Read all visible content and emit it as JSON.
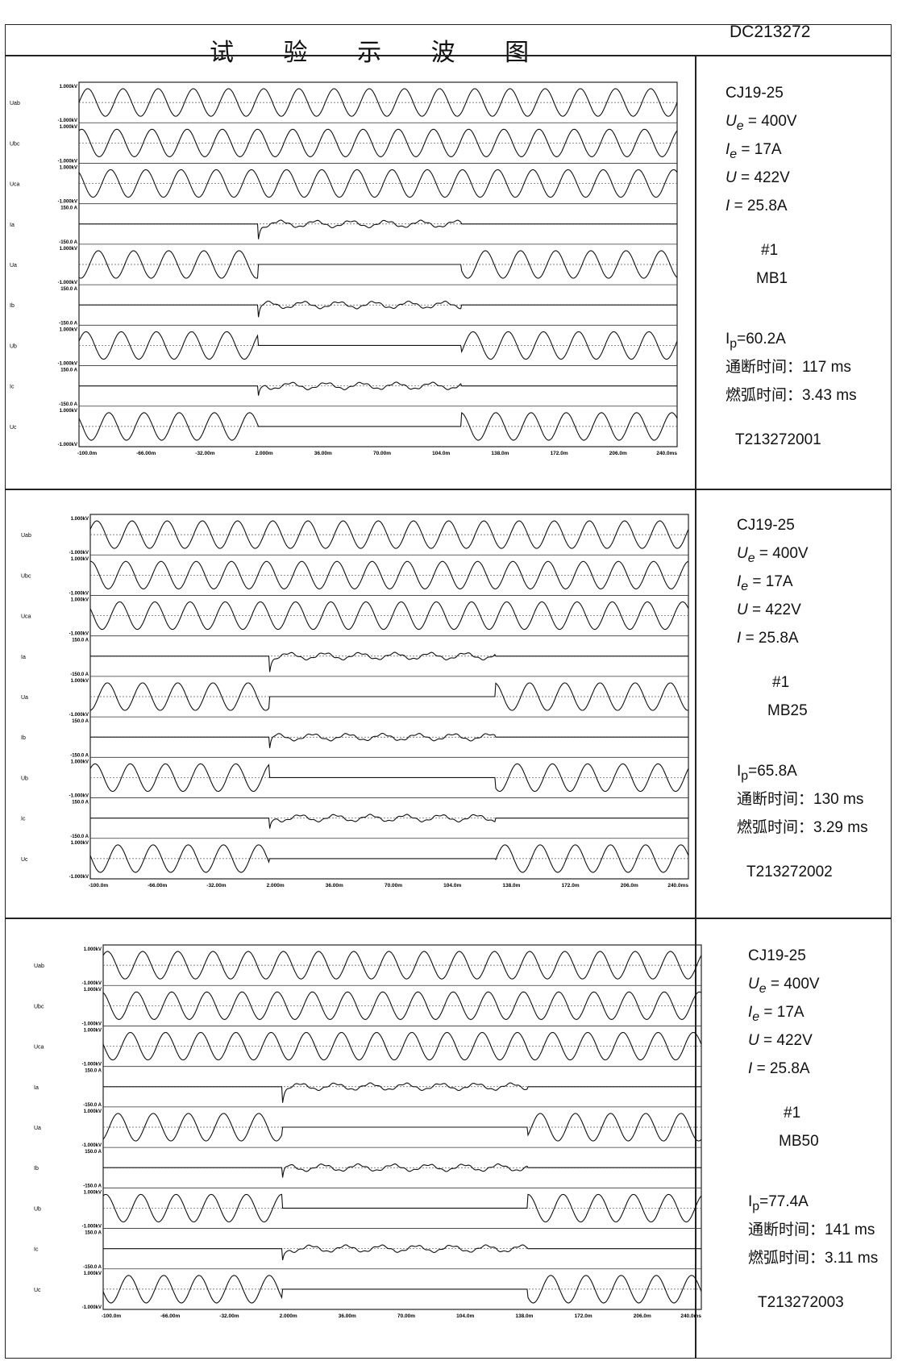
{
  "document": {
    "title": "试 验 示 波 图",
    "code": "DC213272"
  },
  "channels": [
    "Uab",
    "Ubc",
    "Uca",
    "Ia",
    "Ua",
    "Ib",
    "Ub",
    "Ic",
    "Uc"
  ],
  "scales": {
    "voltage_top": "1.000kV",
    "voltage_bottom": "-1.000kV",
    "current_top": "150.0 A",
    "current_bottom": "-150.0 A"
  },
  "time_axis": [
    "-100.0m",
    "-66.00m",
    "-32.00m",
    "2.000m",
    "36.00m",
    "70.00m",
    "104.0m",
    "138.0m",
    "172.0m",
    "206.0m",
    "240.0ms"
  ],
  "tests": [
    {
      "model": "CJ19-25",
      "ue": "= 400V",
      "ie": "= 17A",
      "u": "= 422V",
      "i": "= 25.8A",
      "no": "#1",
      "mb": "MB1",
      "ip": "60.2A",
      "on_off_label": "通断时间：",
      "on_off": "117 ms",
      "arc_label": "燃弧时间：",
      "arc": "3.43 ms",
      "test_id": "T213272001"
    },
    {
      "model": "CJ19-25",
      "ue": "= 400V",
      "ie": "= 17A",
      "u": "= 422V",
      "i": "= 25.8A",
      "no": "#1",
      "mb": "MB25",
      "ip": "65.8A",
      "on_off_label": "通断时间：",
      "on_off": "130 ms",
      "arc_label": "燃弧时间：",
      "arc": "3.29 ms",
      "test_id": "T213272002"
    },
    {
      "model": "CJ19-25",
      "ue": "= 400V",
      "ie": "= 17A",
      "u": "= 422V",
      "i": "= 25.8A",
      "no": "#1",
      "mb": "MB50",
      "ip": "77.4A",
      "on_off_label": "通断时间：",
      "on_off": "141  ms",
      "arc_label": "燃弧时间：",
      "arc": "3.11 ms",
      "test_id": "T213272003"
    }
  ],
  "waveform_events_ms": [
    {
      "current_start": 2.0,
      "current_end": 117.0
    },
    {
      "current_start": 2.0,
      "current_end": 130.0
    },
    {
      "current_start": 2.0,
      "current_end": 141.0
    }
  ]
}
